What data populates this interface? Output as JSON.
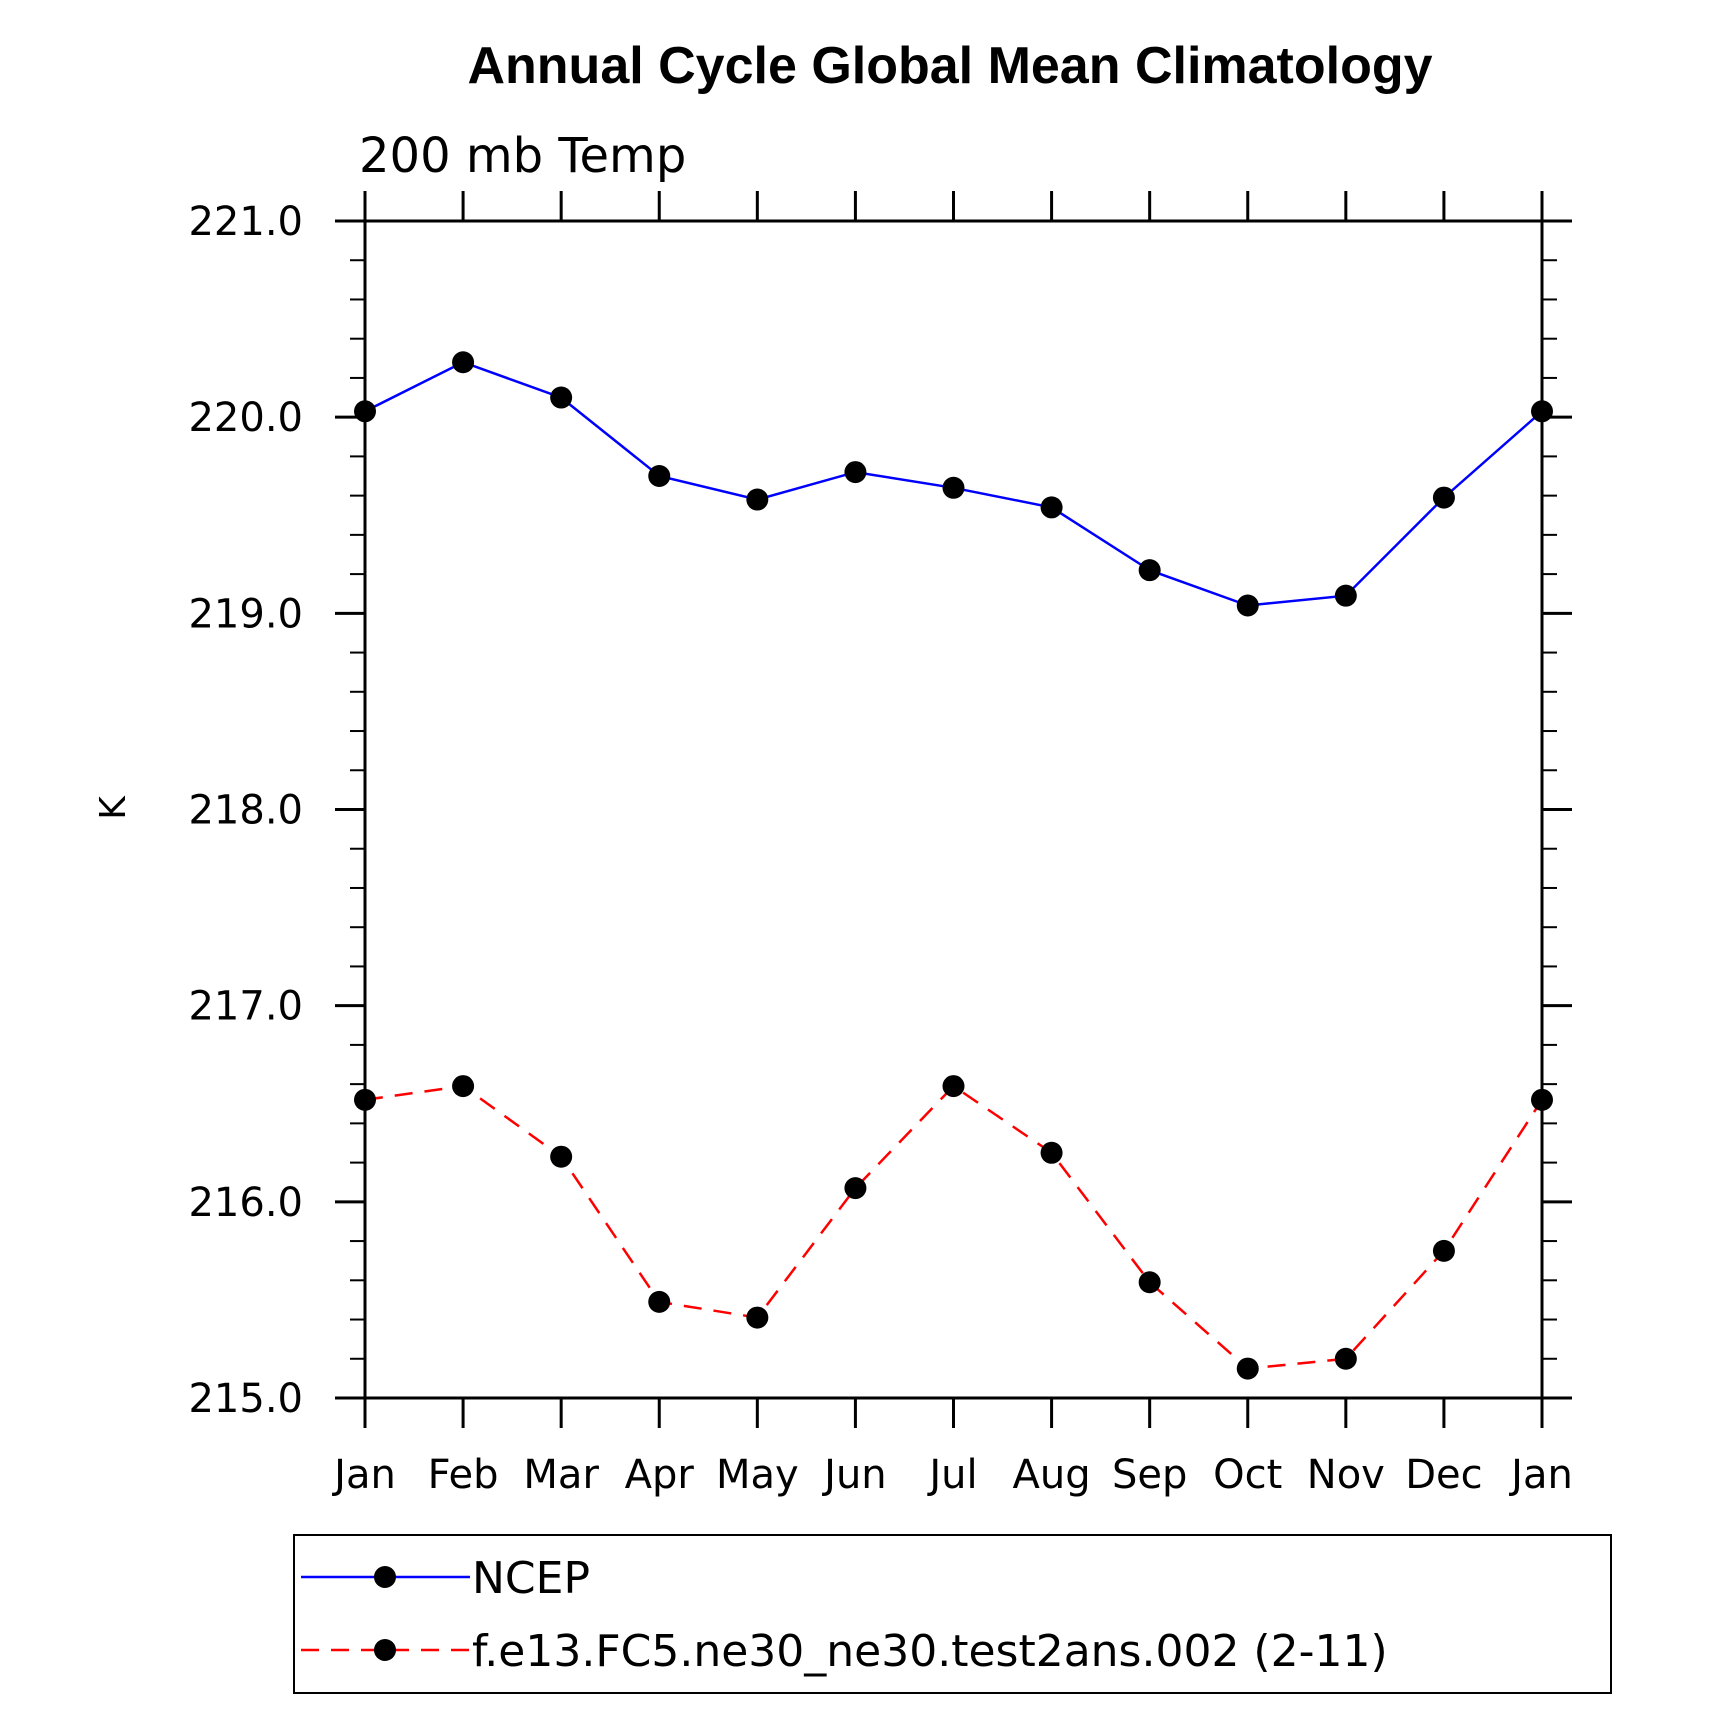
{
  "chart_data": {
    "type": "line",
    "title": "Annual Cycle Global Mean Climatology",
    "subtitle": "200 mb Temp",
    "xlabel": "",
    "ylabel": "K",
    "categories": [
      "Jan",
      "Feb",
      "Mar",
      "Apr",
      "May",
      "Jun",
      "Jul",
      "Aug",
      "Sep",
      "Oct",
      "Nov",
      "Dec",
      "Jan"
    ],
    "ylim": [
      215.0,
      221.0
    ],
    "yticks": [
      "215.0",
      "216.0",
      "217.0",
      "218.0",
      "219.0",
      "220.0",
      "221.0"
    ],
    "grid": false,
    "legend_position": "bottom",
    "series": [
      {
        "name": "NCEP",
        "color": "#0000ff",
        "dash": "solid",
        "marker": "filled-circle",
        "values": [
          220.03,
          220.28,
          220.1,
          219.7,
          219.58,
          219.72,
          219.64,
          219.54,
          219.22,
          219.04,
          219.09,
          219.59,
          220.03
        ]
      },
      {
        "name": "f.e13.FC5.ne30_ne30.test2ans.002 (2-11)",
        "color": "#ff0000",
        "dash": "dashed",
        "marker": "filled-circle",
        "values": [
          216.52,
          216.59,
          216.23,
          215.49,
          215.41,
          216.07,
          216.59,
          216.25,
          215.59,
          215.15,
          215.2,
          215.75,
          216.52
        ]
      }
    ]
  }
}
